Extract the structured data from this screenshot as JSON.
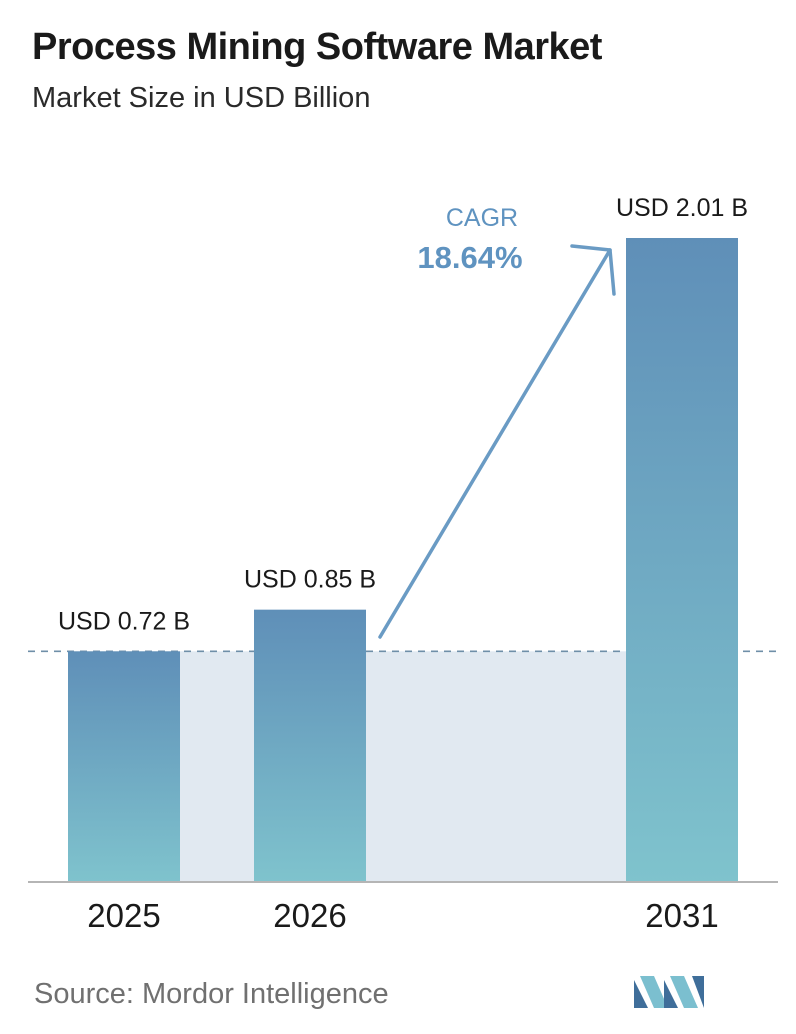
{
  "title": "Process Mining Software Market",
  "subtitle": "Market Size in USD Billion",
  "chart_data": {
    "type": "bar",
    "categories": [
      "2025",
      "2026",
      "2031"
    ],
    "values": [
      0.72,
      0.85,
      2.01
    ],
    "data_labels": [
      "USD 0.72 B",
      "USD 0.85 B",
      "USD 2.01 B"
    ],
    "ylim": [
      0,
      2.01
    ],
    "grid": false,
    "reference_line_value": 0.72,
    "annotation": {
      "label": "CAGR",
      "value": "18.64%"
    }
  },
  "source": "Source:  Mordor Intelligence",
  "colors": {
    "bar_top": "#5f8fb8",
    "bar_bottom": "#7fc3cd",
    "band": "#e1e9f1",
    "arrow": "#6a9bc4",
    "cagr_text": "#5f93c0",
    "baseline": "#b5b5b5",
    "dash": "#6f8fa8"
  },
  "logo_icon": "mordor-intelligence-logo-icon"
}
